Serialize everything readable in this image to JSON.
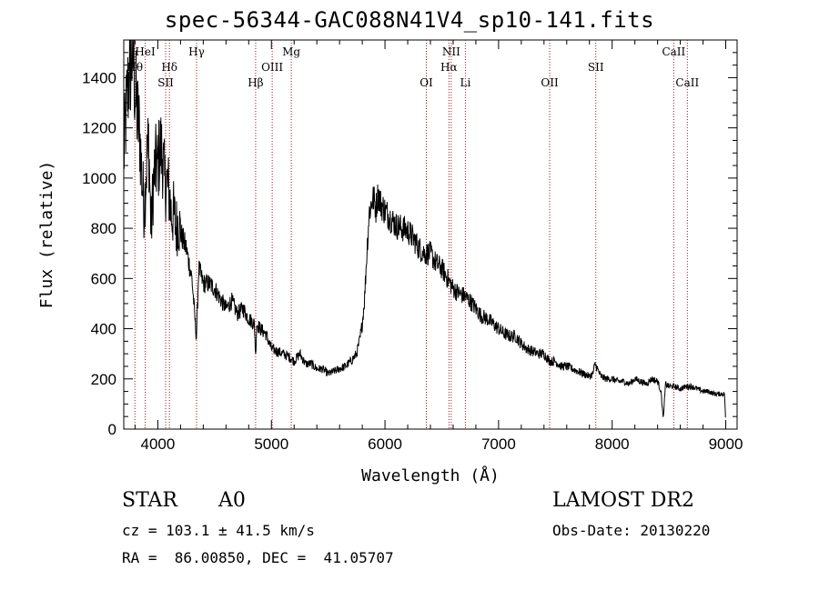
{
  "header": {
    "title": "spec-56344-GAC088N41V4_sp10-141.fits"
  },
  "info": {
    "class": "STAR",
    "subclass": "A0",
    "survey": "LAMOST DR2",
    "cz": "cz = 103.1 ± 41.5 km/s",
    "obs_date": "Obs-Date: 20130220",
    "ra_dec": "RA =  86.00850, DEC =  41.05707"
  },
  "chart_data": {
    "type": "line",
    "title": "spec-56344-GAC088N41V4_sp10-141.fits",
    "xlabel": "Wavelength (Å)",
    "ylabel": "Flux (relative)",
    "xlim": [
      3700,
      9100
    ],
    "ylim": [
      0,
      1550
    ],
    "x_ticks": [
      4000,
      5000,
      6000,
      7000,
      8000,
      9000
    ],
    "y_ticks": [
      0,
      200,
      400,
      600,
      800,
      1000,
      1200,
      1400
    ],
    "grid": false,
    "line_color": "#000000",
    "marker_color": "#a01818",
    "series": [
      {
        "x": [
          3700,
          3720,
          3740,
          3760,
          3780,
          3800,
          3820,
          3840,
          3860,
          3880,
          3900,
          3920,
          3940,
          3960,
          3980,
          4000,
          4020,
          4040,
          4060,
          4080,
          4100,
          4120,
          4140,
          4160,
          4180,
          4200,
          4250,
          4300,
          4340,
          4360,
          4400,
          4450,
          4500,
          4550,
          4600,
          4650,
          4700,
          4750,
          4800,
          4850,
          4861,
          4870,
          4900,
          4950,
          5000,
          5050,
          5100,
          5150,
          5200,
          5250,
          5300,
          5350,
          5400,
          5450,
          5500,
          5550,
          5600,
          5650,
          5700,
          5750,
          5780,
          5800,
          5820,
          5840,
          5860,
          5880,
          5900,
          5920,
          5940,
          5960,
          6000,
          6050,
          6100,
          6150,
          6200,
          6250,
          6300,
          6350,
          6400,
          6450,
          6500,
          6563,
          6600,
          6650,
          6700,
          6750,
          6800,
          6850,
          6900,
          6950,
          7000,
          7050,
          7100,
          7150,
          7200,
          7250,
          7300,
          7350,
          7400,
          7450,
          7500,
          7550,
          7600,
          7650,
          7700,
          7750,
          7800,
          7830,
          7850,
          7900,
          7950,
          8000,
          8050,
          8100,
          8150,
          8200,
          8250,
          8300,
          8350,
          8400,
          8430,
          8450,
          8470,
          8500,
          8550,
          8600,
          8650,
          8700,
          8750,
          8800,
          8850,
          8900,
          8950,
          8990,
          9000
        ],
        "values": [
          1080,
          1250,
          1380,
          1450,
          1520,
          1350,
          1250,
          1180,
          1000,
          880,
          1050,
          1150,
          780,
          980,
          1050,
          1050,
          1120,
          1100,
          980,
          980,
          940,
          850,
          860,
          800,
          830,
          780,
          720,
          600,
          360,
          640,
          580,
          580,
          560,
          520,
          480,
          510,
          460,
          480,
          440,
          420,
          290,
          420,
          400,
          380,
          320,
          310,
          300,
          290,
          270,
          300,
          260,
          260,
          240,
          240,
          220,
          230,
          240,
          250,
          270,
          300,
          360,
          420,
          520,
          700,
          860,
          900,
          920,
          880,
          940,
          900,
          870,
          840,
          810,
          800,
          790,
          760,
          720,
          700,
          700,
          660,
          640,
          590,
          560,
          540,
          530,
          510,
          480,
          450,
          440,
          420,
          400,
          380,
          370,
          370,
          340,
          320,
          310,
          300,
          300,
          270,
          270,
          250,
          250,
          240,
          230,
          220,
          210,
          220,
          260,
          210,
          200,
          200,
          190,
          190,
          180,
          200,
          190,
          180,
          200,
          190,
          150,
          40,
          180,
          170,
          170,
          160,
          170,
          170,
          160,
          150,
          150,
          140,
          140,
          140,
          20
        ],
        "name": ""
      }
    ],
    "lines": [
      {
        "label": "Hθ",
        "x": 3798,
        "row": 2
      },
      {
        "label": "HeI",
        "x": 3889,
        "row": 1
      },
      {
        "label": "Hδ",
        "x": 4102,
        "row": 2
      },
      {
        "label": "SII",
        "x": 4069,
        "row": 3
      },
      {
        "label": "Hγ",
        "x": 4341,
        "row": 1
      },
      {
        "label": "Hβ",
        "x": 4861,
        "row": 3
      },
      {
        "label": "OIII",
        "x": 5007,
        "row": 2
      },
      {
        "label": "Mg",
        "x": 5175,
        "row": 1
      },
      {
        "label": "OI",
        "x": 6364,
        "row": 3
      },
      {
        "label": "NII",
        "x": 6583,
        "row": 1
      },
      {
        "label": "Hα",
        "x": 6563,
        "row": 2
      },
      {
        "label": "Li",
        "x": 6708,
        "row": 3
      },
      {
        "label": "OII",
        "x": 7450,
        "row": 3
      },
      {
        "label": "SII",
        "x": 7856,
        "row": 2
      },
      {
        "label": "CaII",
        "x": 8542,
        "row": 1
      },
      {
        "label": "CaII",
        "x": 8662,
        "row": 3
      }
    ]
  }
}
